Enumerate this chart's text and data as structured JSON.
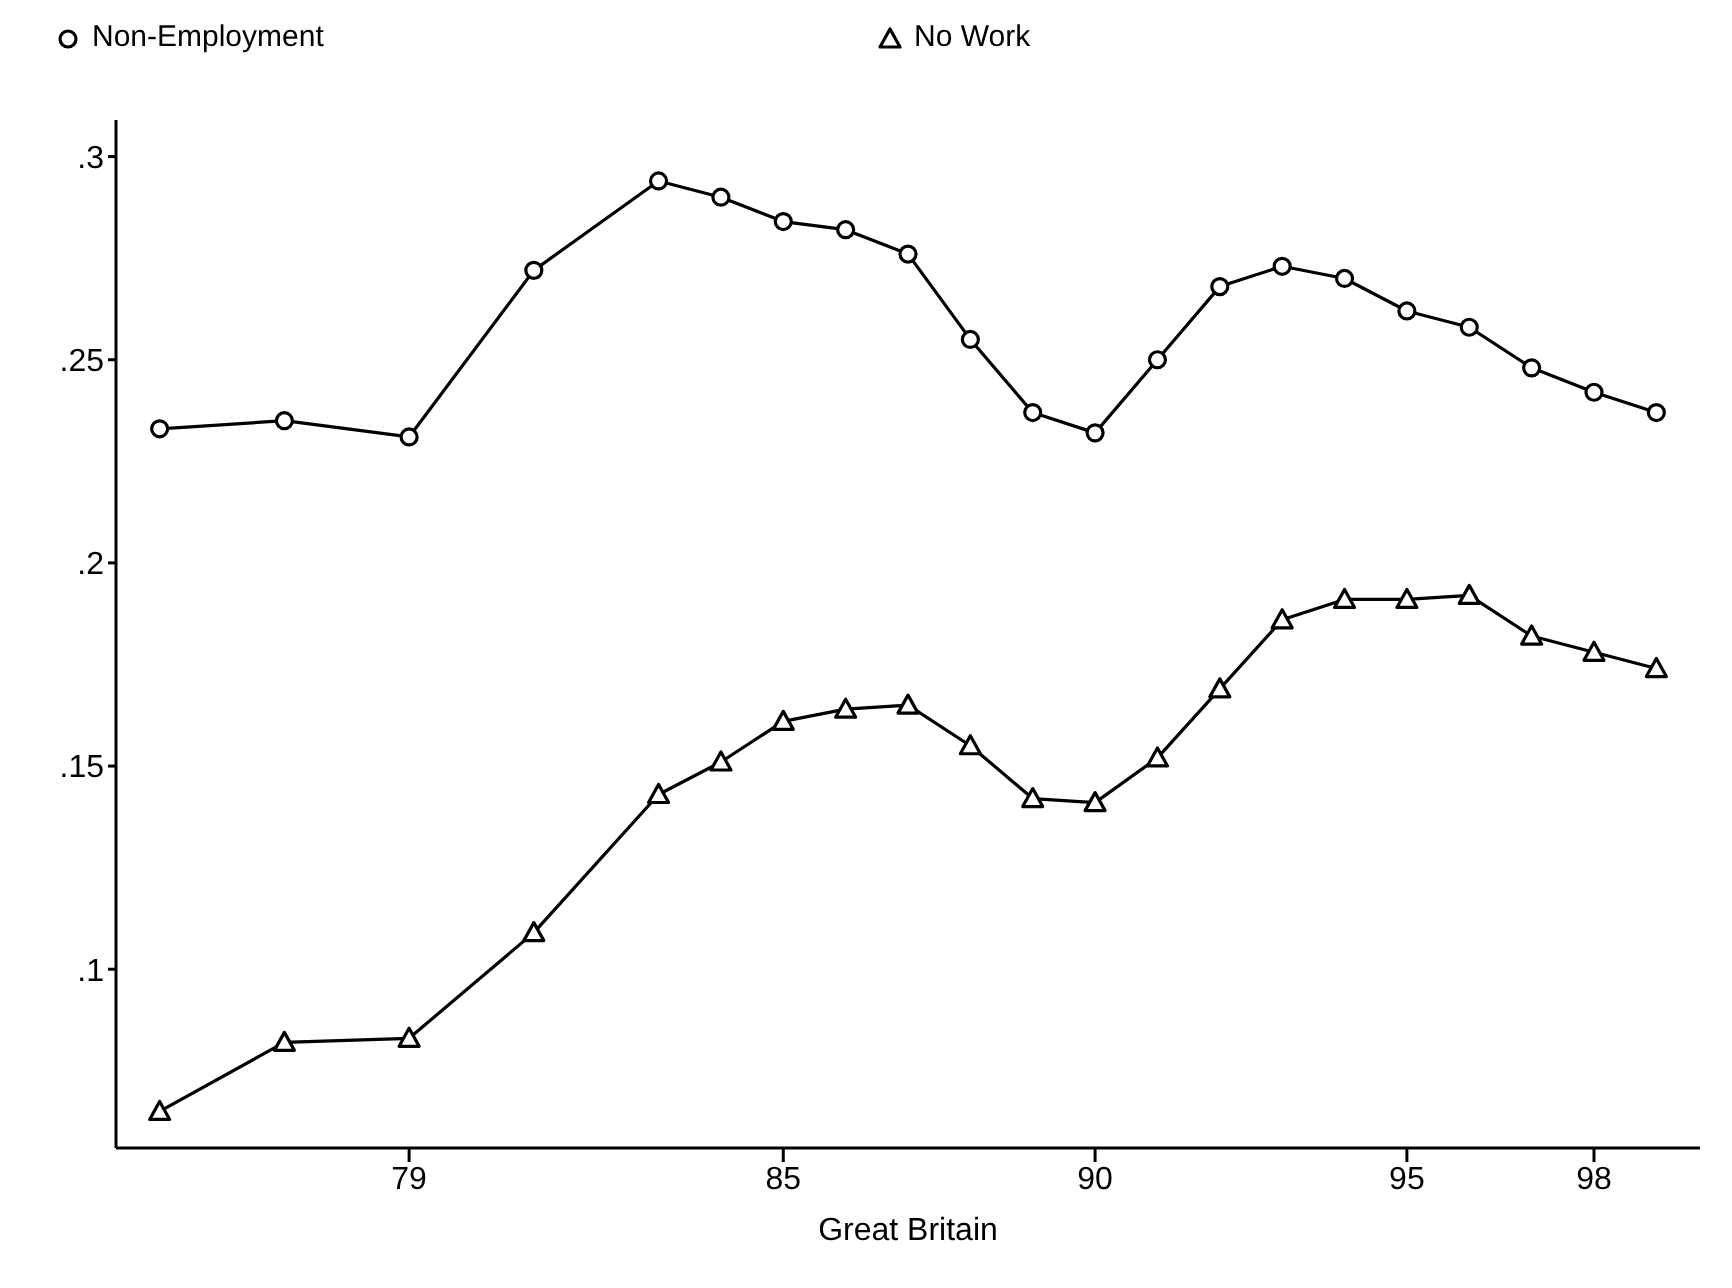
{
  "chart_data": {
    "type": "line",
    "xlabel": "Great Britain",
    "x": [
      75,
      77,
      79,
      81,
      83,
      84,
      85,
      86,
      87,
      88,
      89,
      90,
      91,
      92,
      93,
      94,
      95,
      96,
      97,
      98,
      99
    ],
    "series": [
      {
        "name": "Non-Employment",
        "color": "#000000",
        "marker": "circle",
        "values": [
          0.233,
          0.235,
          0.231,
          0.272,
          0.294,
          0.29,
          0.284,
          0.282,
          0.276,
          0.255,
          0.237,
          0.232,
          0.25,
          0.268,
          0.273,
          0.27,
          0.262,
          0.258,
          0.248,
          0.242,
          0.237
        ]
      },
      {
        "name": "No Work",
        "color": "#000000",
        "marker": "triangle",
        "values": [
          0.065,
          0.082,
          0.083,
          0.109,
          0.143,
          0.151,
          0.161,
          0.164,
          0.165,
          0.155,
          0.142,
          0.141,
          0.152,
          0.169,
          0.186,
          0.191,
          0.191,
          0.192,
          0.182,
          0.178,
          0.174
        ]
      }
    ],
    "xlim": [
      74.3,
      99.7
    ],
    "xticks": [
      79,
      85,
      90,
      95,
      98
    ],
    "ylim": [
      0.056,
      0.309
    ],
    "yticks": [
      {
        "value": 0.1,
        "label": ".1"
      },
      {
        "value": 0.15,
        "label": ".15"
      },
      {
        "value": 0.2,
        "label": ".2"
      },
      {
        "value": 0.25,
        "label": ".25"
      },
      {
        "value": 0.3,
        "label": ".3"
      }
    ],
    "legend": "top",
    "grid": false,
    "line_style": "solid"
  }
}
